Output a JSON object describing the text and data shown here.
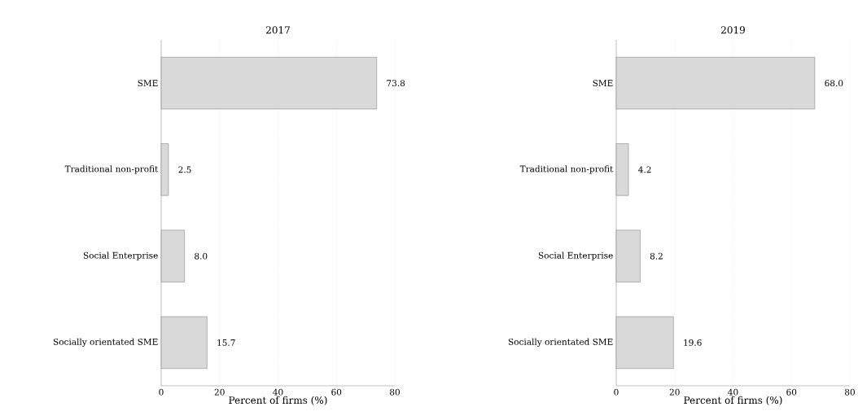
{
  "chart_data": [
    {
      "type": "bar",
      "orientation": "horizontal",
      "title": "2017",
      "xlabel": "Percent of firms (%)",
      "categories": [
        "SME",
        "Traditional non-profit",
        "Social Enterprise",
        "Socially orientated SME"
      ],
      "values": [
        73.8,
        2.5,
        8.0,
        15.7
      ],
      "value_labels": [
        "73.8",
        "2.5",
        "8.0",
        "15.7"
      ],
      "color": "#d9d9d9",
      "xlim": [
        0,
        80
      ],
      "xticks": [
        0,
        20,
        40,
        60,
        80
      ],
      "grid": "x"
    },
    {
      "type": "bar",
      "orientation": "horizontal",
      "title": "2019",
      "xlabel": "Percent of firms (%)",
      "categories": [
        "SME",
        "Traditional non-profit",
        "Social Enterprise",
        "Socially orientated SME"
      ],
      "values": [
        68.0,
        4.2,
        8.2,
        19.6
      ],
      "value_labels": [
        "68.0",
        "4.2",
        "8.2",
        "19.6"
      ],
      "color": "#d9d9d9",
      "xlim": [
        0,
        80
      ],
      "xticks": [
        0,
        20,
        40,
        60,
        80
      ],
      "grid": "x"
    }
  ]
}
